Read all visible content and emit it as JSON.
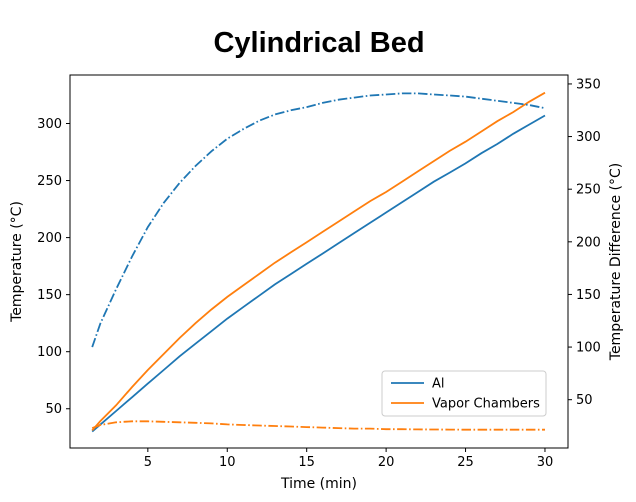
{
  "chart_data": {
    "type": "line",
    "title": "Cylindrical Bed",
    "xlabel": "Time (min)",
    "ylabel_left": "Temperature (°C)",
    "ylabel_right": "Temperature Difference (°C)",
    "xlim": [
      0.1,
      31.45
    ],
    "ylim_left": [
      15.6,
      342.5
    ],
    "ylim_right": [
      4.1,
      358.5
    ],
    "xticks": [
      5,
      10,
      15,
      20,
      25,
      30
    ],
    "yticks_left": [
      50,
      100,
      150,
      200,
      250,
      300
    ],
    "yticks_right": [
      50,
      100,
      150,
      200,
      250,
      300,
      350
    ],
    "grid": false,
    "x": [
      1.5,
      2,
      3,
      4,
      5,
      6,
      7,
      8,
      9,
      10,
      11,
      12,
      13,
      14,
      15,
      16,
      17,
      18,
      19,
      20,
      21,
      22,
      23,
      24,
      25,
      26,
      27,
      28,
      29,
      30
    ],
    "series": [
      {
        "name": "Al",
        "axis": "left",
        "style": "solid",
        "color": "#1f77b4",
        "in_legend": true,
        "values": [
          30,
          36,
          48,
          60,
          72,
          84,
          96,
          107,
          118,
          129,
          139,
          149,
          159,
          168,
          177,
          186,
          195,
          204,
          213,
          222,
          231,
          240,
          249,
          257,
          265,
          274,
          282,
          291,
          299,
          307
        ]
      },
      {
        "name": "Vapor Chambers",
        "axis": "left",
        "style": "solid",
        "color": "#ff7f0e",
        "in_legend": true,
        "values": [
          31,
          39,
          53,
          69,
          84,
          98,
          112,
          125,
          137,
          148,
          158,
          168,
          178,
          187,
          196,
          205,
          214,
          223,
          232,
          240,
          249,
          258,
          267,
          276,
          284,
          293,
          302,
          310,
          319,
          327
        ]
      },
      {
        "name": "blue-dashdot-right-axis",
        "axis": "right",
        "style": "dashdot",
        "color": "#1f77b4",
        "in_legend": false,
        "values": [
          100,
          122,
          155,
          186,
          214,
          237,
          256,
          272,
          286,
          298,
          307,
          315,
          321,
          325,
          328,
          332,
          335,
          337,
          339,
          340,
          341,
          341,
          340,
          339,
          338,
          336,
          334,
          332,
          330,
          327
        ]
      },
      {
        "name": "orange-dashdot-right-axis",
        "axis": "right",
        "style": "dashdot",
        "color": "#ff7f0e",
        "in_legend": false,
        "values": [
          23,
          26,
          28.5,
          29.5,
          29.5,
          29,
          28.5,
          28,
          27.5,
          26.5,
          26,
          25.5,
          25,
          24.5,
          24,
          23.5,
          23,
          22.5,
          22.5,
          22,
          22,
          21.8,
          21.7,
          21.6,
          21.5,
          21.5,
          21.5,
          21.5,
          21.5,
          21.5
        ]
      }
    ],
    "legend": {
      "position": "lower right",
      "entries": [
        "Al",
        "Vapor Chambers"
      ]
    }
  }
}
